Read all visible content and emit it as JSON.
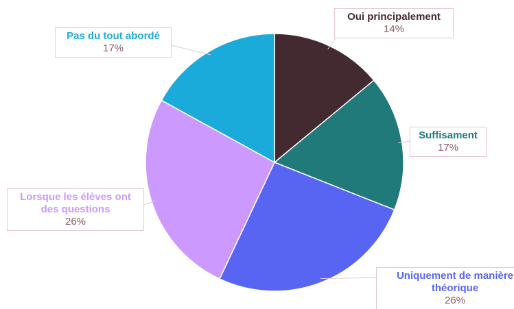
{
  "chart_data": {
    "type": "pie",
    "categories": [
      "Oui principalement",
      "Suffisament",
      "Uniquement de manière théorique",
      "Lorsque les élèves ont des questions",
      "Pas du tout abordé"
    ],
    "values": [
      14,
      17,
      26,
      26,
      17
    ],
    "value_labels": [
      "14%",
      "17%",
      "26%",
      "26%",
      "17%"
    ],
    "colors": [
      "#432a30",
      "#217a7a",
      "#5865f2",
      "#cc99ff",
      "#1aabdb"
    ]
  }
}
